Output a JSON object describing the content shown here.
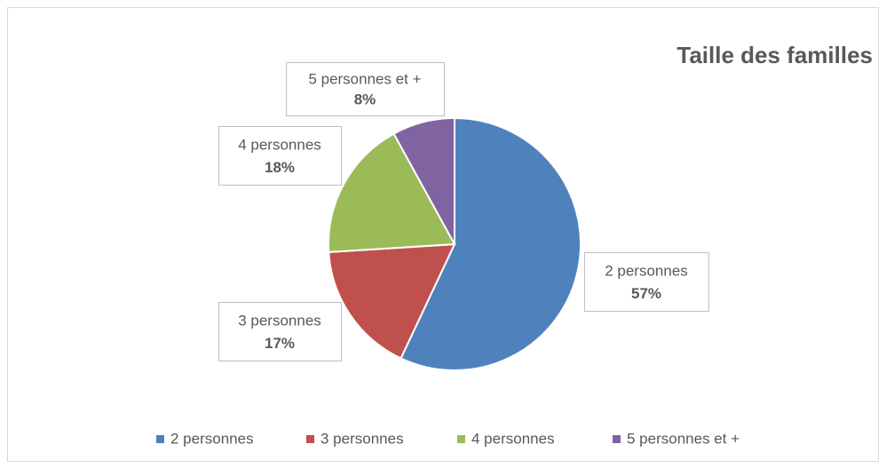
{
  "chart_data": {
    "type": "pie",
    "title": "Taille des familles",
    "categories": [
      "2 personnes",
      "3 personnes",
      "4 personnes",
      "5 personnes et +"
    ],
    "values": [
      57,
      17,
      18,
      8
    ],
    "value_labels": [
      "57%",
      "17%",
      "18%",
      "8%"
    ],
    "colors": [
      "#4f81bd",
      "#c0504d",
      "#9bbb59",
      "#8064a2"
    ],
    "legend": "bottom"
  }
}
